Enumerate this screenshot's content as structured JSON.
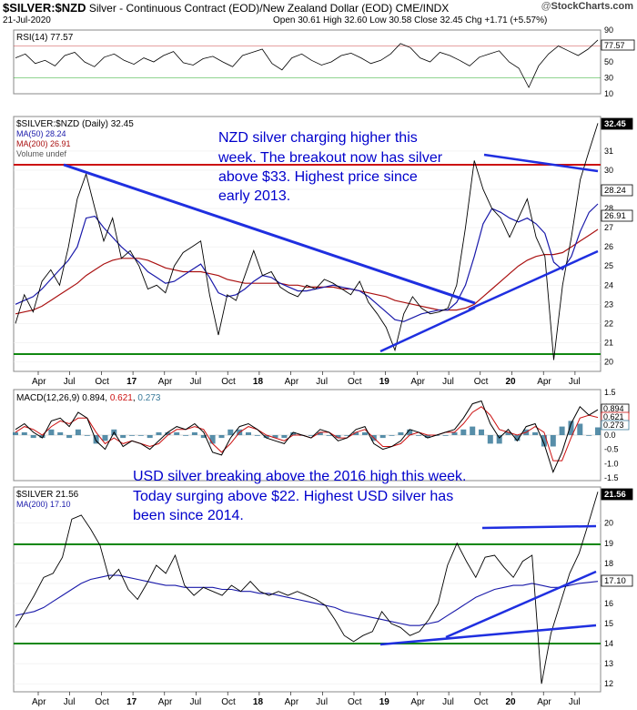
{
  "header": {
    "symbol": "$SILVER:$NZD",
    "description": "Silver - Continuous Contract (EOD)/New Zealand Dollar (EOD)  CME/INDX",
    "date": "21-Jul-2020",
    "ohlc": "Open 30.61  High 32.60  Low 30.58  Close 32.45  Chg +1.71 (+5.57%)",
    "brand_at": "@",
    "brand": "StockCharts.com"
  },
  "rsi": {
    "label": "RSI(14) 77.57",
    "ticks": [
      "90",
      "70",
      "50",
      "30",
      "10"
    ],
    "current": "77.57"
  },
  "nzd": {
    "legend": [
      "$SILVER:$NZD (Daily) 32.45",
      "MA(50) 28.24",
      "MA(200) 26.91",
      "Volume undef"
    ],
    "ticks": [
      "31",
      "30",
      "29",
      "28",
      "27",
      "26",
      "25",
      "24",
      "23",
      "22",
      "21",
      "20"
    ],
    "badges": [
      "32.45",
      "28.24",
      "26.91"
    ],
    "annotation": [
      "NZD silver charging higher this",
      "week. The breakout now has silver",
      "above $33. Highest price since",
      "early 2013."
    ]
  },
  "macd": {
    "label": "MACD(12,26,9) 0.894, ",
    "signal": "0.621",
    "hist": "0.273",
    "ticks": [
      "1.5",
      "1.0",
      "0.5",
      "0.0",
      "-0.5",
      "-1.0",
      "-1.5"
    ],
    "badges": [
      "0.894",
      "0.621",
      "0.273"
    ]
  },
  "usd": {
    "legend": [
      "$SILVER 21.56",
      "MA(200) 17.10"
    ],
    "ticks": [
      "20",
      "19",
      "18",
      "17",
      "16",
      "15",
      "14",
      "13",
      "12"
    ],
    "badges": [
      "21.56",
      "17.10"
    ],
    "annotation": [
      "USD silver breaking above the 2016 high this week.",
      "Today surging above $22. Highest USD silver has",
      "been since 2014."
    ]
  },
  "xaxis": [
    "Apr",
    "Jul",
    "Oct",
    "17",
    "Apr",
    "Jul",
    "Oct",
    "18",
    "Apr",
    "Jul",
    "Oct",
    "19",
    "Apr",
    "Jul",
    "Oct",
    "20",
    "Apr",
    "Jul"
  ],
  "colors": {
    "price": "#000000",
    "ma50": "#1a1aaa",
    "ma200": "#aa1111",
    "trend": "#1f2fe0",
    "support": "#118811",
    "resist": "#cc1111",
    "macd_hist": "#3a7a9a",
    "annotation": "#0000cc"
  },
  "chart_data": [
    {
      "type": "line",
      "title": "",
      "series": [
        {
          "name": "RSI(14)",
          "values": [
            55,
            60,
            48,
            52,
            45,
            58,
            62,
            50,
            44,
            56,
            60,
            52,
            47,
            55,
            50,
            58,
            63,
            49,
            46,
            54,
            57,
            50,
            44,
            58,
            62,
            66,
            48,
            40,
            55,
            60,
            52,
            46,
            50,
            58,
            61,
            55,
            48,
            52,
            60,
            73,
            68,
            55,
            50,
            62,
            58,
            52,
            45,
            56,
            60,
            64,
            50,
            42,
            18,
            45,
            60,
            70,
            64,
            58,
            66,
            77.57
          ]
        }
      ],
      "ylim": [
        10,
        90
      ],
      "current": 77.57
    },
    {
      "type": "line",
      "title": "",
      "ylim": [
        19.5,
        32.8
      ],
      "series": [
        {
          "name": "$SILVER:$NZD",
          "values": [
            22,
            23.5,
            22.6,
            24.2,
            24.8,
            24,
            26,
            28.5,
            29.8,
            28,
            26.3,
            27.5,
            25.4,
            25.8,
            25,
            23.8,
            24,
            23.6,
            25,
            25.7,
            26,
            26.3,
            23.5,
            21.4,
            23.5,
            23.2,
            24.5,
            25.8,
            24.5,
            24.7,
            23.9,
            23.6,
            23.4,
            24,
            23.8,
            24.3,
            24.1,
            23.8,
            23.5,
            24.2,
            23.1,
            22.5,
            21.8,
            20.6,
            22.5,
            23.4,
            22.8,
            22.5,
            22.6,
            22.8,
            24,
            27,
            30.5,
            29,
            28,
            27.5,
            26.5,
            27.5,
            28.5,
            26.5,
            25.5,
            20.1,
            24,
            26.5,
            29.5,
            31,
            32.45
          ]
        },
        {
          "name": "MA(50)",
          "values": [
            23,
            23.2,
            23.4,
            23.8,
            24.3,
            24.8,
            25.3,
            26,
            27.5,
            27.6,
            27,
            26.5,
            26,
            25.6,
            25.2,
            24.7,
            24.4,
            24.1,
            24.2,
            24.5,
            24.8,
            25.1,
            24.4,
            23.6,
            23.4,
            23.5,
            23.8,
            24.2,
            24.5,
            24.4,
            24.1,
            23.9,
            23.7,
            23.7,
            23.8,
            23.9,
            24,
            23.9,
            23.8,
            23.7,
            23.4,
            23,
            22.6,
            22.2,
            22.1,
            22.3,
            22.5,
            22.6,
            22.7,
            22.7,
            23.1,
            24,
            25.5,
            27.2,
            28,
            27.8,
            27.5,
            27.3,
            27.5,
            27.2,
            26.7,
            25.2,
            24.8,
            25.5,
            26.8,
            27.8,
            28.24
          ]
        },
        {
          "name": "MA(200)",
          "values": [
            22.5,
            22.6,
            22.7,
            22.9,
            23.2,
            23.5,
            23.8,
            24.1,
            24.5,
            24.8,
            25.1,
            25.3,
            25.4,
            25.4,
            25.4,
            25.3,
            25.1,
            24.9,
            24.8,
            24.7,
            24.7,
            24.7,
            24.6,
            24.5,
            24.3,
            24.2,
            24.1,
            24.1,
            24.1,
            24.1,
            24.1,
            24,
            24,
            23.9,
            23.9,
            23.9,
            23.9,
            23.8,
            23.8,
            23.7,
            23.6,
            23.5,
            23.4,
            23.2,
            23.1,
            23,
            22.9,
            22.8,
            22.7,
            22.7,
            22.7,
            22.8,
            23,
            23.4,
            23.8,
            24.2,
            24.6,
            25,
            25.3,
            25.5,
            25.6,
            25.6,
            25.7,
            26,
            26.3,
            26.6,
            26.91
          ]
        }
      ]
    },
    {
      "type": "line",
      "title": "",
      "ylim": [
        -1.6,
        1.6
      ],
      "series": [
        {
          "name": "MACD",
          "values": [
            0.2,
            0.4,
            0.1,
            -0.1,
            0.5,
            0.6,
            0.3,
            0.8,
            0.6,
            -0.2,
            -0.5,
            0.1,
            -0.4,
            -0.2,
            -0.3,
            -0.5,
            -0.2,
            0.1,
            0.3,
            0.2,
            0.4,
            0.1,
            -0.6,
            -0.7,
            -0.1,
            0.3,
            0.4,
            0.2,
            -0.1,
            -0.2,
            -0.3,
            0.1,
            0,
            -0.1,
            0.2,
            0.1,
            -0.2,
            -0.1,
            0.2,
            0.3,
            -0.3,
            -0.5,
            -0.4,
            -0.2,
            0.2,
            0.1,
            -0.1,
            0,
            0.1,
            0.2,
            0.6,
            1.1,
            1.2,
            0.4,
            -0.1,
            0.2,
            -0.2,
            0.3,
            0.4,
            -0.3,
            -1.3,
            -0.6,
            0.4,
            1.0,
            0.7,
            0.894
          ]
        },
        {
          "name": "Signal",
          "values": [
            0.1,
            0.3,
            0.2,
            0,
            0.3,
            0.5,
            0.4,
            0.6,
            0.6,
            0.1,
            -0.3,
            -0.1,
            -0.3,
            -0.2,
            -0.3,
            -0.4,
            -0.3,
            0,
            0.2,
            0.2,
            0.3,
            0.2,
            -0.3,
            -0.6,
            -0.3,
            0.1,
            0.3,
            0.2,
            0,
            -0.1,
            -0.2,
            0,
            0,
            -0.1,
            0.1,
            0.1,
            -0.1,
            -0.1,
            0.1,
            0.2,
            -0.1,
            -0.4,
            -0.4,
            -0.3,
            0,
            0.1,
            0,
            0,
            0.1,
            0.1,
            0.4,
            0.8,
            1.0,
            0.7,
            0.2,
            0.1,
            0,
            0.1,
            0.3,
            0.1,
            -0.9,
            -0.9,
            -0.1,
            0.6,
            0.7,
            0.621
          ]
        }
      ]
    },
    {
      "type": "line",
      "title": "",
      "ylim": [
        11.6,
        21.8
      ],
      "series": [
        {
          "name": "$SILVER",
          "values": [
            14.8,
            15.6,
            16.4,
            17.3,
            17.5,
            18.3,
            20.2,
            20.4,
            19.7,
            18.9,
            17.2,
            17.7,
            16.7,
            16.2,
            17,
            17.9,
            17.5,
            18.4,
            16.9,
            16.4,
            16.8,
            16.6,
            16.4,
            16.9,
            16.6,
            17.1,
            16.6,
            16.4,
            16.6,
            16.4,
            16.6,
            16.4,
            16.2,
            15.9,
            15.2,
            14.4,
            14.1,
            14.4,
            14.6,
            15.6,
            15,
            14.8,
            14.4,
            14.6,
            15.2,
            16,
            17.9,
            19,
            18.1,
            17.3,
            18.3,
            18.4,
            17.8,
            17.3,
            18.1,
            18.4,
            12,
            14.5,
            16,
            17.5,
            18.5,
            20,
            21.56
          ]
        },
        {
          "name": "MA(200)",
          "values": [
            15.4,
            15.5,
            15.6,
            15.8,
            16.1,
            16.4,
            16.7,
            17,
            17.2,
            17.3,
            17.4,
            17.4,
            17.3,
            17.2,
            17.1,
            17,
            16.9,
            16.9,
            16.8,
            16.8,
            16.8,
            16.8,
            16.7,
            16.7,
            16.6,
            16.6,
            16.5,
            16.5,
            16.4,
            16.3,
            16.2,
            16.1,
            16,
            15.9,
            15.8,
            15.6,
            15.5,
            15.4,
            15.3,
            15.2,
            15.1,
            15,
            14.9,
            14.9,
            15,
            15.1,
            15.4,
            15.7,
            16,
            16.3,
            16.5,
            16.7,
            16.8,
            16.9,
            16.9,
            17,
            16.9,
            16.8,
            16.8,
            16.9,
            17,
            17.05,
            17.1
          ]
        }
      ]
    }
  ]
}
